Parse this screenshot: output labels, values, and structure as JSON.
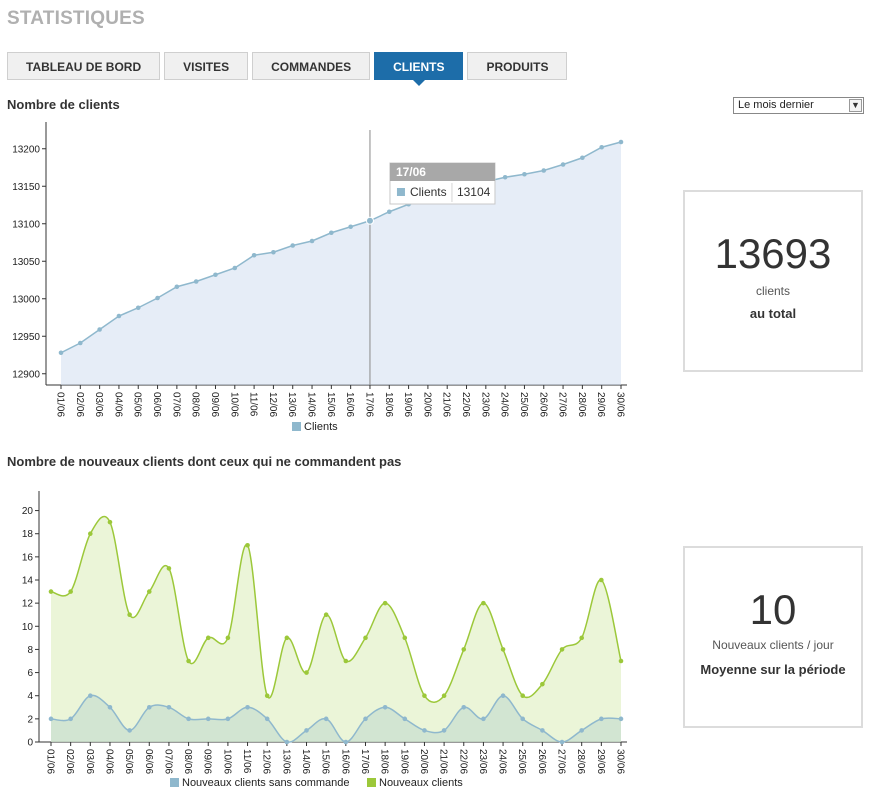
{
  "page_title": "STATISTIQUES",
  "tabs": [
    {
      "label": "TABLEAU DE BORD"
    },
    {
      "label": "VISITES"
    },
    {
      "label": "COMMANDES"
    },
    {
      "label": "CLIENTS"
    },
    {
      "label": "PRODUITS"
    }
  ],
  "active_tab": "CLIENTS",
  "section1": {
    "title": "Nombre de clients"
  },
  "period_select": {
    "value": "Le mois dernier"
  },
  "stat1": {
    "value": "13693",
    "unit": "clients",
    "caption": "au total"
  },
  "section2": {
    "title": "Nombre de nouveaux clients dont ceux qui ne commandent pas"
  },
  "stat2": {
    "value": "10",
    "unit": "Nouveaux clients / jour",
    "caption": "Moyenne sur la période"
  },
  "chart_data": [
    {
      "type": "area",
      "categories": [
        "01/06",
        "02/06",
        "03/06",
        "04/06",
        "05/06",
        "06/06",
        "07/06",
        "08/06",
        "09/06",
        "10/06",
        "11/06",
        "12/06",
        "13/06",
        "14/06",
        "15/06",
        "16/06",
        "17/06",
        "18/06",
        "19/06",
        "20/06",
        "21/06",
        "22/06",
        "23/06",
        "24/06",
        "25/06",
        "26/06",
        "27/06",
        "28/06",
        "29/06",
        "30/06"
      ],
      "series": [
        {
          "name": "Clients",
          "color": "#8fb8cd",
          "values": [
            12928,
            12941,
            12959,
            12977,
            12988,
            13001,
            13016,
            13023,
            13032,
            13041,
            13058,
            13062,
            13071,
            13077,
            13088,
            13096,
            13104,
            13116,
            13126,
            13130,
            13134,
            13145,
            13156,
            13162,
            13166,
            13171,
            13179,
            13188,
            13202,
            13209
          ]
        }
      ],
      "yticks": [
        12900,
        12950,
        13000,
        13050,
        13100,
        13150,
        13200
      ],
      "ylim": [
        12885,
        13225
      ],
      "tooltip": {
        "date": "17/06",
        "series": "Clients",
        "value": "13104"
      },
      "legend": "bottom"
    },
    {
      "type": "area",
      "categories": [
        "01/06",
        "02/06",
        "03/06",
        "04/06",
        "05/06",
        "06/06",
        "07/06",
        "08/06",
        "09/06",
        "10/06",
        "11/06",
        "12/06",
        "13/06",
        "14/06",
        "15/06",
        "16/06",
        "17/06",
        "18/06",
        "19/06",
        "20/06",
        "21/06",
        "22/06",
        "23/06",
        "24/06",
        "25/06",
        "26/06",
        "27/06",
        "28/06",
        "29/06",
        "30/06"
      ],
      "series": [
        {
          "name": "Nouveaux clients sans commande",
          "color": "#8fb8cd",
          "values": [
            2,
            2,
            4,
            3,
            1,
            3,
            3,
            2,
            2,
            2,
            3,
            2,
            0,
            1,
            2,
            0,
            2,
            3,
            2,
            1,
            1,
            3,
            2,
            4,
            2,
            1,
            0,
            1,
            2,
            2
          ]
        },
        {
          "name": "Nouveaux clients",
          "color": "#9cc83a",
          "values": [
            13,
            13,
            18,
            19,
            11,
            13,
            15,
            7,
            9,
            9,
            17,
            4,
            9,
            6,
            11,
            7,
            9,
            12,
            9,
            4,
            4,
            8,
            12,
            8,
            4,
            5,
            8,
            9,
            14,
            7
          ]
        }
      ],
      "yticks": [
        0,
        2,
        4,
        6,
        8,
        10,
        12,
        14,
        16,
        18,
        20
      ],
      "ylim": [
        0,
        21
      ],
      "legend": "bottom"
    }
  ]
}
